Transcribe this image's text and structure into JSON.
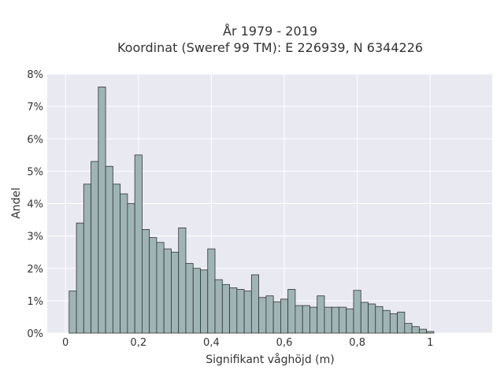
{
  "chart_data": {
    "type": "bar",
    "title": "År 1979 - 2019",
    "subtitle": "Koordinat (Sweref 99 TM): E 226939, N 6344226",
    "xlabel": "Signifikant våghöjd (m)",
    "ylabel": "Andel",
    "xlim": [
      -0.05,
      1.17
    ],
    "ylim": [
      0,
      8
    ],
    "x_ticks": [
      0,
      0.2,
      0.4,
      0.6,
      0.8,
      1
    ],
    "x_tick_labels": [
      "0",
      "0,2",
      "0,4",
      "0,6",
      "0,8",
      "1"
    ],
    "y_ticks": [
      0,
      1,
      2,
      3,
      4,
      5,
      6,
      7,
      8
    ],
    "y_tick_labels": [
      "0%",
      "1%",
      "2%",
      "3%",
      "4%",
      "5%",
      "6%",
      "7%",
      "8%"
    ],
    "grid": true,
    "bin_width": 0.02,
    "bin_starts": [
      0.01,
      0.03,
      0.05,
      0.07,
      0.09,
      0.11,
      0.13,
      0.15,
      0.17,
      0.19,
      0.21,
      0.23,
      0.25,
      0.27,
      0.29,
      0.31,
      0.33,
      0.35,
      0.37,
      0.39,
      0.41,
      0.43,
      0.45,
      0.47,
      0.49,
      0.51,
      0.53,
      0.55,
      0.57,
      0.59,
      0.61,
      0.63,
      0.65,
      0.67,
      0.69,
      0.71,
      0.73,
      0.75,
      0.77,
      0.79,
      0.81,
      0.83,
      0.85,
      0.87,
      0.89,
      0.91,
      0.93,
      0.95,
      0.97,
      0.99,
      1.01,
      1.03,
      1.05,
      1.07,
      1.09
    ],
    "values": [
      1.3,
      3.4,
      4.6,
      5.3,
      7.6,
      5.15,
      4.6,
      4.3,
      4.0,
      5.5,
      3.2,
      2.95,
      2.8,
      2.6,
      2.5,
      3.25,
      2.15,
      2.0,
      1.95,
      2.6,
      1.65,
      1.5,
      1.4,
      1.35,
      1.3,
      1.8,
      1.1,
      1.15,
      0.97,
      1.05,
      1.35,
      0.85,
      0.85,
      0.8,
      1.15,
      0.8,
      0.8,
      0.8,
      0.75,
      1.32,
      0.95,
      0.9,
      0.82,
      0.7,
      0.6,
      0.65,
      0.3,
      0.2,
      0.12,
      0.05,
      0.0,
      0.0,
      0.0,
      0.0,
      0.0
    ],
    "bar_color": "#9fb5b5",
    "bar_edge_color": "#333333",
    "plot_background": "#e9e9f1",
    "grid_color": "#ffffff"
  }
}
